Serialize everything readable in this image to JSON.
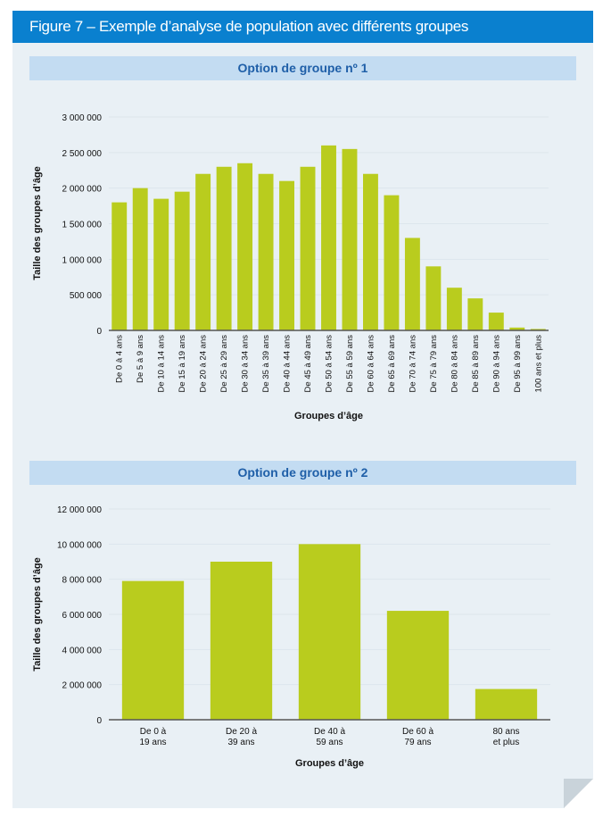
{
  "figure_title": "Figure 7 – Exemple d’analyse de population avec différents groupes",
  "colors": {
    "header": "#0a80cf",
    "band": "#c3dcf2",
    "band_text": "#1f5fa8",
    "bar": "#b9cc1e",
    "background": "#e9f0f5"
  },
  "chart_data": [
    {
      "type": "bar",
      "title": "Option de groupe nº 1",
      "xlabel": "Groupes d’âge",
      "ylabel": "Taille des groupes d’âge",
      "ylim": [
        0,
        3000000
      ],
      "yticks": [
        "0",
        "500 000",
        "1 000 000",
        "1 500 000",
        "2 000 000",
        "2 500 000",
        "3 000 000"
      ],
      "grid": true,
      "categories": [
        "De 0 à 4 ans",
        "De 5 à 9 ans",
        "De 10 à 14 ans",
        "De 15 à 19 ans",
        "De 20 à 24 ans",
        "De 25 à 29 ans",
        "De 30 à 34 ans",
        "De 35 à 39 ans",
        "De 40 à 44 ans",
        "De 45 à 49 ans",
        "De 50 à 54 ans",
        "De 55 à 59 ans",
        "De 60 à 64 ans",
        "De 65 à 69 ans",
        "De 70 à 74 ans",
        "De 75 à 79 ans",
        "De 80 à 84 ans",
        "De 85 à 89 ans",
        "De 90 à 94 ans",
        "De 95 à 99 ans",
        "100 ans et plus"
      ],
      "values": [
        1800000,
        2000000,
        1850000,
        1950000,
        2200000,
        2300000,
        2350000,
        2200000,
        2100000,
        2300000,
        2600000,
        2550000,
        2200000,
        1900000,
        1300000,
        900000,
        600000,
        450000,
        250000,
        40000,
        20000
      ]
    },
    {
      "type": "bar",
      "title": "Option de groupe nº 2",
      "xlabel": "Groupes d’âge",
      "ylabel": "Taille des groupes d’âge",
      "ylim": [
        0,
        12000000
      ],
      "yticks": [
        "0",
        "2 000 000",
        "4 000 000",
        "6 000 000",
        "8 000 000",
        "10 000 000",
        "12 000 000"
      ],
      "grid": true,
      "categories": [
        [
          "De 0 à",
          "19 ans"
        ],
        [
          "De 20 à",
          "39 ans"
        ],
        [
          "De 40 à",
          "59 ans"
        ],
        [
          "De 60 à",
          "79 ans"
        ],
        [
          "80 ans",
          "et plus"
        ]
      ],
      "values": [
        7900000,
        9000000,
        10000000,
        6200000,
        1750000
      ]
    }
  ]
}
